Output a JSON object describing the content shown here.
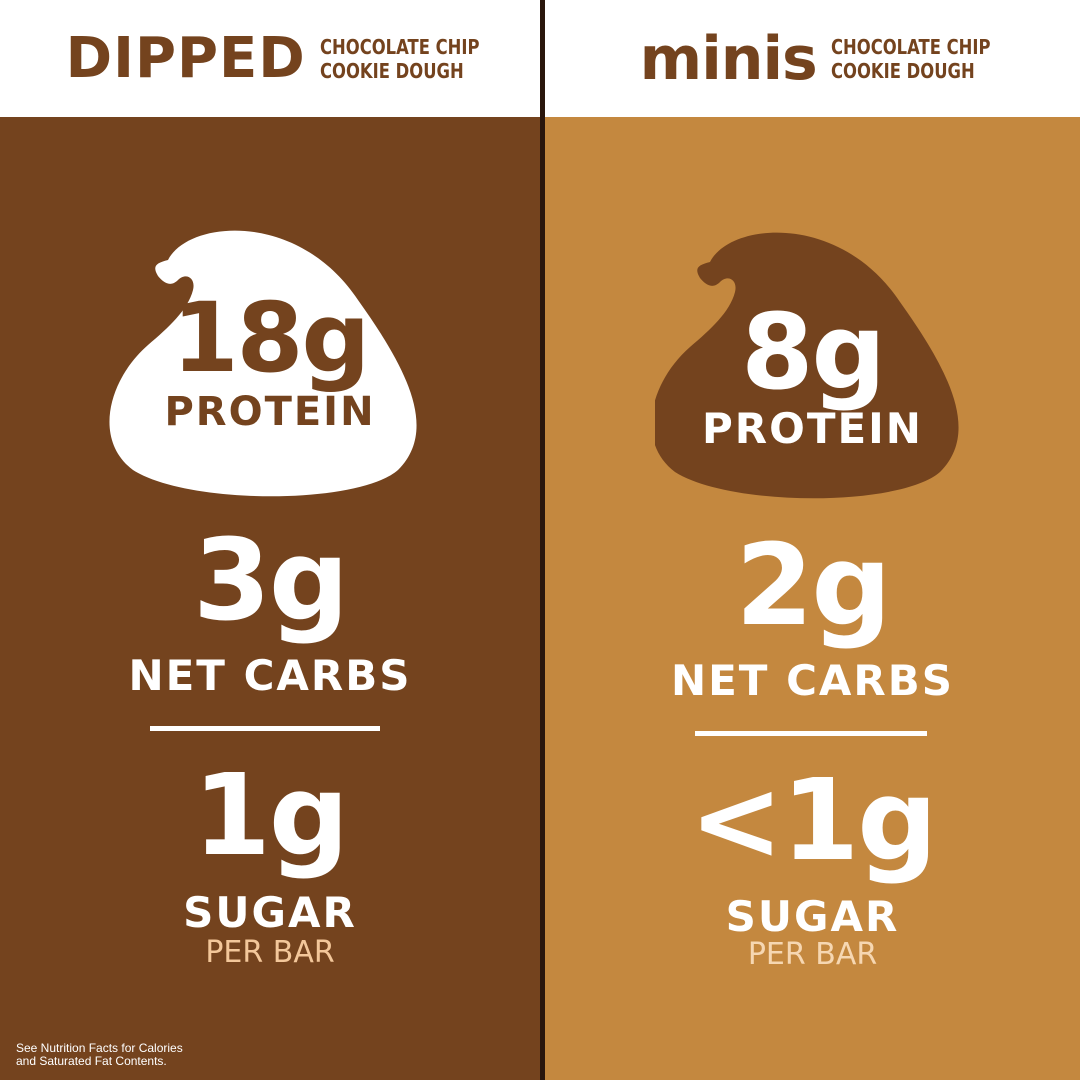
{
  "left": {
    "brand": "DIPPED",
    "flavor_line1": "CHOCOLATE CHIP",
    "flavor_line2": "COOKIE DOUGH",
    "protein_value": "18g",
    "protein_label": "PROTEIN",
    "carbs_value": "3g",
    "carbs_label": "NET CARBS",
    "sugar_value": "1g",
    "sugar_label": "SUGAR",
    "per_bar": "PER BAR",
    "footnote_line1": "See Nutrition Facts for Calories",
    "footnote_line2": "and Saturated Fat Contents."
  },
  "right": {
    "brand": "minis",
    "flavor_line1": "CHOCOLATE CHIP",
    "flavor_line2": "COOKIE DOUGH",
    "protein_value": "8g",
    "protein_label": "PROTEIN",
    "carbs_value": "2g",
    "carbs_label": "NET CARBS",
    "sugar_value": "<1g",
    "sugar_label": "SUGAR",
    "per_bar": "PER BAR"
  },
  "colors": {
    "dark_brown": "#74431e",
    "caramel": "#c4883f",
    "white": "#ffffff",
    "per_bar_tint": "#f3c79a"
  },
  "icons": {
    "chip": "chocolate-chip-icon"
  }
}
